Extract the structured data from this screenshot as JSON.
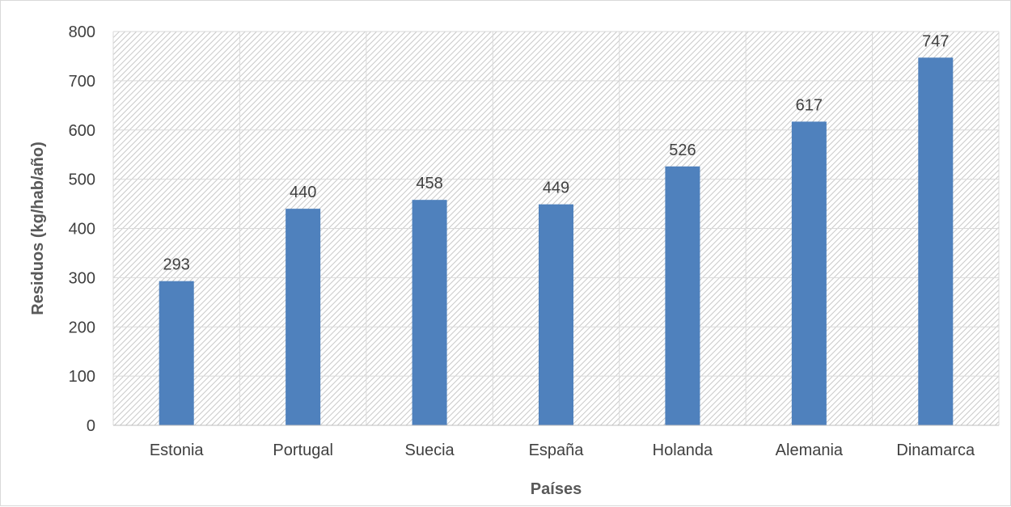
{
  "chart_data": {
    "type": "bar",
    "categories": [
      "Estonia",
      "Portugal",
      "Suecia",
      "España",
      "Holanda",
      "Alemania",
      "Dinamarca"
    ],
    "values": [
      293,
      440,
      458,
      449,
      526,
      617,
      747
    ],
    "data_labels": [
      "293",
      "440",
      "458",
      "449",
      "526",
      "617",
      "747"
    ],
    "title": "",
    "xlabel": "Países",
    "ylabel": "Residuos (kg/hab/año)",
    "ylim": [
      0,
      800
    ],
    "yticks": [
      0,
      100,
      200,
      300,
      400,
      500,
      600,
      700,
      800
    ],
    "ytick_labels": [
      "0",
      "100",
      "200",
      "300",
      "400",
      "500",
      "600",
      "700",
      "800"
    ],
    "grid": true,
    "legend": "none",
    "bar_color": "#4f81bd",
    "plot_background": "hatched gray"
  }
}
